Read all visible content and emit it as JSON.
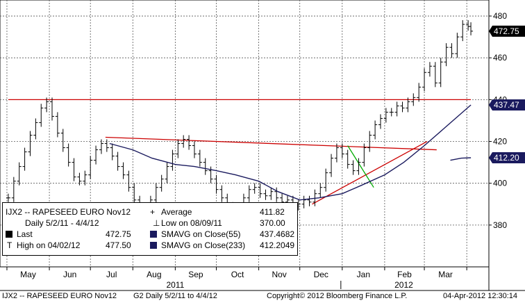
{
  "chart_data": {
    "type": "line",
    "x_start": "2011-05-02",
    "x_end": "2012-04-04",
    "ylim": [
      360,
      485
    ],
    "y_ticks": [
      380,
      400,
      420,
      440,
      460,
      480
    ],
    "month_labels": [
      "May",
      "Jun",
      "Jul",
      "Aug",
      "Sep",
      "Oct",
      "Nov",
      "Dec",
      "Jan",
      "Feb",
      "Mar"
    ],
    "year_labels": [
      "2011",
      "2012"
    ],
    "price_tags": [
      {
        "label": "472.75",
        "value": 472.75,
        "color": "#000000"
      },
      {
        "label": "437.47",
        "value": 437.47,
        "color": "#1a1a5e"
      },
      {
        "label": "412.20",
        "value": 412.2,
        "color": "#1a1a5e"
      }
    ],
    "series": [
      {
        "name": "Last",
        "style": "bars",
        "color": "#000000",
        "points": [
          [
            "2011-05-02",
            393
          ],
          [
            "2011-05-06",
            401
          ],
          [
            "2011-05-10",
            408
          ],
          [
            "2011-05-14",
            415
          ],
          [
            "2011-05-18",
            423
          ],
          [
            "2011-05-22",
            429
          ],
          [
            "2011-05-26",
            436
          ],
          [
            "2011-05-30",
            439
          ],
          [
            "2011-06-03",
            432
          ],
          [
            "2011-06-07",
            424
          ],
          [
            "2011-06-11",
            417
          ],
          [
            "2011-06-15",
            410
          ],
          [
            "2011-06-19",
            403
          ],
          [
            "2011-06-23",
            401
          ],
          [
            "2011-06-27",
            404
          ],
          [
            "2011-07-01",
            411
          ],
          [
            "2011-07-05",
            416
          ],
          [
            "2011-07-09",
            419
          ],
          [
            "2011-07-13",
            417
          ],
          [
            "2011-07-17",
            413
          ],
          [
            "2011-07-21",
            408
          ],
          [
            "2011-07-25",
            404
          ],
          [
            "2011-07-29",
            398
          ],
          [
            "2011-08-02",
            392
          ],
          [
            "2011-08-06",
            386
          ],
          [
            "2011-08-10",
            378
          ],
          [
            "2011-08-14",
            392
          ],
          [
            "2011-08-18",
            398
          ],
          [
            "2011-08-22",
            402
          ],
          [
            "2011-08-26",
            408
          ],
          [
            "2011-08-30",
            414
          ],
          [
            "2011-09-03",
            419
          ],
          [
            "2011-09-07",
            421
          ],
          [
            "2011-09-11",
            418
          ],
          [
            "2011-09-15",
            414
          ],
          [
            "2011-09-19",
            410
          ],
          [
            "2011-09-23",
            406
          ],
          [
            "2011-09-27",
            402
          ],
          [
            "2011-10-01",
            397
          ],
          [
            "2011-10-05",
            393
          ],
          [
            "2011-10-09",
            389
          ],
          [
            "2011-10-13",
            385
          ],
          [
            "2011-10-17",
            388
          ],
          [
            "2011-10-21",
            393
          ],
          [
            "2011-10-25",
            397
          ],
          [
            "2011-10-29",
            398
          ],
          [
            "2011-11-02",
            395
          ],
          [
            "2011-11-06",
            394
          ],
          [
            "2011-11-10",
            396
          ],
          [
            "2011-11-14",
            393
          ],
          [
            "2011-11-18",
            391
          ],
          [
            "2011-11-22",
            392
          ],
          [
            "2011-11-26",
            389
          ],
          [
            "2011-11-30",
            390
          ],
          [
            "2011-12-04",
            392
          ],
          [
            "2011-12-08",
            391
          ],
          [
            "2011-12-12",
            395
          ],
          [
            "2011-12-16",
            398
          ],
          [
            "2011-12-20",
            405
          ],
          [
            "2011-12-24",
            412
          ],
          [
            "2011-12-28",
            417
          ],
          [
            "2012-01-01",
            414
          ],
          [
            "2012-01-05",
            409
          ],
          [
            "2012-01-09",
            406
          ],
          [
            "2012-01-13",
            410
          ],
          [
            "2012-01-17",
            417
          ],
          [
            "2012-01-21",
            423
          ],
          [
            "2012-01-25",
            428
          ],
          [
            "2012-01-29",
            431
          ],
          [
            "2012-02-02",
            434
          ],
          [
            "2012-02-06",
            434
          ],
          [
            "2012-02-10",
            437
          ],
          [
            "2012-02-14",
            436
          ],
          [
            "2012-02-18",
            439
          ],
          [
            "2012-02-22",
            441
          ],
          [
            "2012-02-26",
            446
          ],
          [
            "2012-03-01",
            453
          ],
          [
            "2012-03-05",
            456
          ],
          [
            "2012-03-09",
            448
          ],
          [
            "2012-03-13",
            458
          ],
          [
            "2012-03-17",
            465
          ],
          [
            "2012-03-21",
            462
          ],
          [
            "2012-03-25",
            470
          ],
          [
            "2012-03-29",
            476
          ],
          [
            "2012-04-02",
            475
          ],
          [
            "2012-04-04",
            472.75
          ]
        ]
      },
      {
        "name": "SMAVG on Close(55)",
        "style": "line",
        "color": "#1a1a5e",
        "points": [
          [
            "2011-07-15",
            419
          ],
          [
            "2011-08-01",
            416
          ],
          [
            "2011-08-15",
            412
          ],
          [
            "2011-09-01",
            409
          ],
          [
            "2011-09-15",
            408
          ],
          [
            "2011-10-01",
            406
          ],
          [
            "2011-10-15",
            404
          ],
          [
            "2011-11-01",
            401
          ],
          [
            "2011-11-15",
            396
          ],
          [
            "2011-12-01",
            392
          ],
          [
            "2011-12-15",
            393
          ],
          [
            "2012-01-01",
            395
          ],
          [
            "2012-01-15",
            399
          ],
          [
            "2012-02-01",
            404
          ],
          [
            "2012-02-15",
            410
          ],
          [
            "2012-03-01",
            418
          ],
          [
            "2012-03-15",
            426
          ],
          [
            "2012-04-04",
            437.47
          ]
        ]
      },
      {
        "name": "SMAVG on Close(233)",
        "style": "line",
        "color": "#1a1a5e",
        "points": [
          [
            "2012-03-20",
            411
          ],
          [
            "2012-03-28",
            412
          ],
          [
            "2012-04-04",
            412.2
          ]
        ]
      }
    ],
    "annotations": [
      {
        "name": "resistance-440",
        "color": "#cc0000",
        "from": [
          "2011-05-02",
          440
        ],
        "to": [
          "2012-04-04",
          440
        ]
      },
      {
        "name": "downtrend-line",
        "color": "#cc0000",
        "from": [
          "2011-07-12",
          422
        ],
        "to": [
          "2012-03-10",
          416
        ]
      },
      {
        "name": "uptrend-line",
        "color": "#cc0000",
        "from": [
          "2011-12-10",
          390
        ],
        "to": [
          "2012-03-03",
          420
        ]
      },
      {
        "name": "correction-line",
        "color": "#00aa00",
        "from": [
          "2012-01-05",
          418
        ],
        "to": [
          "2012-01-24",
          398
        ]
      }
    ]
  },
  "legend": {
    "ticker": "IJX2 -- RAPESEED  EURO  Nov12",
    "range": "Daily 5/2/11 - 4/4/12",
    "last_label": "Last",
    "last_value": "472.75",
    "high_label": "High on 04/02/12",
    "high_value": "477.50",
    "avg_label": "Average",
    "avg_value": "411.82",
    "low_label": "Low on 08/09/11",
    "low_value": "370.00",
    "sma55_label": "SMAVG on Close(55)",
    "sma55_value": "437.4682",
    "sma233_label": "SMAVG on Close(233)",
    "sma233_value": "412.2049"
  },
  "footer": {
    "left": "IJX2 -- RAPESEED  EURO  Nov12",
    "mid": "G2  Daily  5/2/11 to 4/4/12",
    "copyright": "Copyright© 2012 Bloomberg Finance L.P.",
    "date": "04-Apr-2012 12:30:14"
  }
}
